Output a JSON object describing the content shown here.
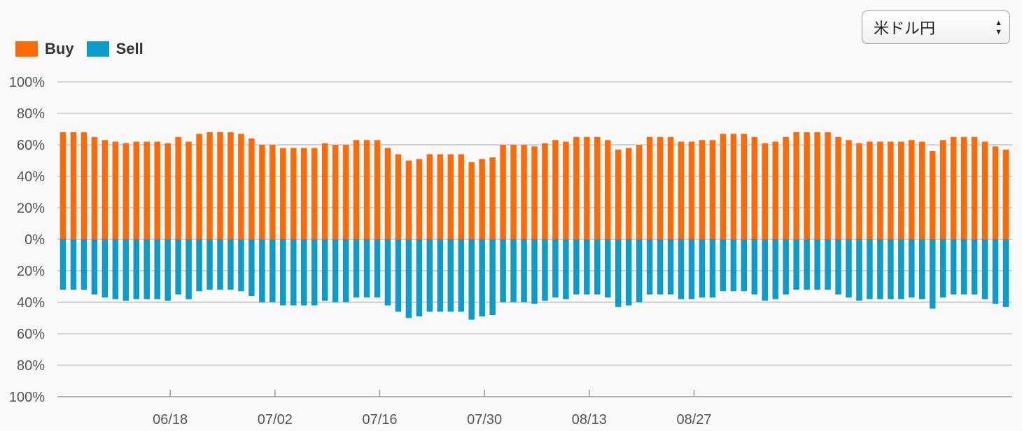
{
  "selector": {
    "value": "米ドル円"
  },
  "colors": {
    "buy": "#ff6a07",
    "sell": "#0b9ccb",
    "grid": "#c8c8c8"
  },
  "chart_data": {
    "type": "bar",
    "legend": [
      {
        "name": "Buy",
        "color": "#ff6a07"
      },
      {
        "name": "Sell",
        "color": "#0b9ccb"
      }
    ],
    "legend_position": "top-left",
    "y_ticks": [
      "100%",
      "80%",
      "60%",
      "40%",
      "20%",
      "0%",
      "20%",
      "40%",
      "60%",
      "80%",
      "100%"
    ],
    "y_range": [
      -100,
      100
    ],
    "x_ticks": [
      {
        "label": "06/18",
        "index": 10
      },
      {
        "label": "07/02",
        "index": 20
      },
      {
        "label": "07/16",
        "index": 30
      },
      {
        "label": "07/30",
        "index": 40
      },
      {
        "label": "08/13",
        "index": 50
      },
      {
        "label": "08/27",
        "index": 60
      }
    ],
    "grid": true,
    "series": [
      {
        "name": "Buy",
        "values": [
          68,
          68,
          68,
          65,
          63,
          62,
          61,
          62,
          62,
          62,
          61,
          65,
          62,
          67,
          68,
          68,
          68,
          67,
          64,
          60,
          60,
          58,
          58,
          58,
          58,
          61,
          60,
          60,
          63,
          63,
          63,
          58,
          54,
          50,
          51,
          54,
          54,
          54,
          54,
          49,
          51,
          52,
          60,
          60,
          60,
          59,
          61,
          63,
          62,
          65,
          65,
          65,
          63,
          57,
          58,
          60,
          65,
          65,
          65,
          62,
          62,
          63,
          63,
          67,
          67,
          67,
          65,
          61,
          62,
          65,
          68,
          68,
          68,
          68,
          65,
          63,
          61,
          62,
          62,
          62,
          62,
          63,
          62,
          56,
          63,
          65,
          65,
          65,
          62,
          59,
          57
        ]
      },
      {
        "name": "Sell",
        "values": [
          32,
          32,
          32,
          35,
          37,
          38,
          39,
          38,
          38,
          38,
          39,
          35,
          38,
          33,
          32,
          32,
          32,
          33,
          36,
          40,
          40,
          42,
          42,
          42,
          42,
          39,
          40,
          40,
          37,
          37,
          37,
          42,
          46,
          50,
          49,
          46,
          46,
          46,
          46,
          51,
          49,
          48,
          40,
          40,
          40,
          41,
          39,
          37,
          38,
          35,
          35,
          35,
          37,
          43,
          42,
          40,
          35,
          35,
          35,
          38,
          38,
          37,
          37,
          33,
          33,
          33,
          35,
          39,
          38,
          35,
          32,
          32,
          32,
          32,
          35,
          37,
          39,
          38,
          38,
          38,
          38,
          37,
          38,
          44,
          37,
          35,
          35,
          35,
          38,
          41,
          43
        ]
      }
    ]
  }
}
